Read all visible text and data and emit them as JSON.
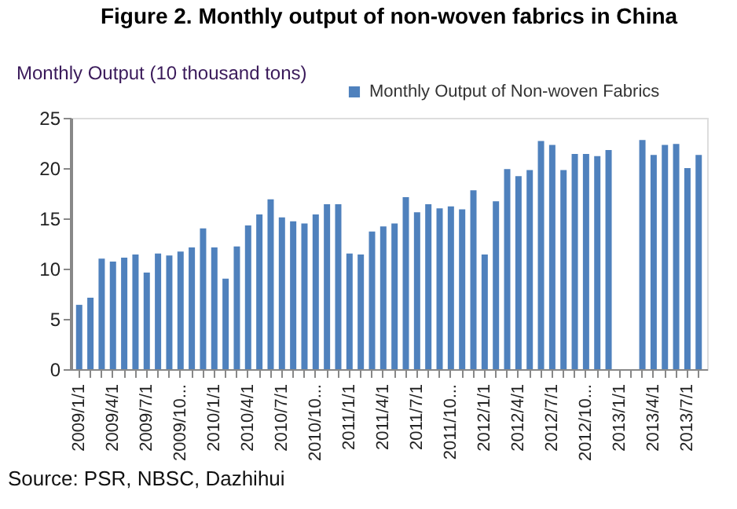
{
  "chart_data": {
    "type": "bar",
    "title": "Figure 2. Monthly output of non-woven fabrics in China",
    "ylabel": "Monthly Output (10  thousand tons)",
    "categories": [
      "2009/1/1",
      null,
      null,
      "2009/4/1",
      null,
      null,
      "2009/7/1",
      null,
      null,
      "2009/10...",
      null,
      null,
      "2010/1/1",
      null,
      null,
      "2010/4/1",
      null,
      null,
      "2010/7/1",
      null,
      null,
      "2010/10...",
      null,
      null,
      "2011/1/1",
      null,
      null,
      "2011/4/1",
      null,
      null,
      "2011/7/1",
      null,
      null,
      "2011/10...",
      null,
      null,
      "2012/1/1",
      null,
      null,
      "2012/4/1",
      null,
      null,
      "2012/7/1",
      null,
      null,
      "2012/10...",
      null,
      null,
      "2013/1/1",
      null,
      null,
      "2013/4/1",
      null,
      null,
      "2013/7/1",
      null
    ],
    "series": [
      {
        "name": "Monthly Output of Non-woven Fabrics",
        "color": "#4f81bd",
        "values": [
          6.4,
          7.1,
          11.0,
          10.7,
          11.1,
          11.4,
          9.6,
          11.5,
          11.3,
          11.7,
          12.1,
          14.0,
          12.1,
          9.0,
          12.2,
          14.3,
          15.4,
          16.9,
          15.1,
          14.7,
          14.5,
          15.4,
          16.4,
          16.4,
          11.5,
          11.4,
          13.7,
          14.2,
          14.5,
          17.1,
          15.6,
          16.4,
          16.0,
          16.2,
          15.9,
          17.8,
          11.4,
          16.7,
          19.9,
          19.2,
          19.8,
          22.7,
          22.3,
          19.8,
          21.4,
          21.4,
          21.2,
          21.8,
          null,
          null,
          22.8,
          21.3,
          22.3,
          22.4,
          20.0,
          21.3
        ]
      }
    ],
    "ylim": [
      0,
      25
    ],
    "yticks": [
      0,
      5,
      10,
      15,
      20,
      25
    ],
    "grid": false,
    "legend": "top right",
    "annotations": [
      "Source: PSR, NBSC, Dazhihui"
    ]
  }
}
